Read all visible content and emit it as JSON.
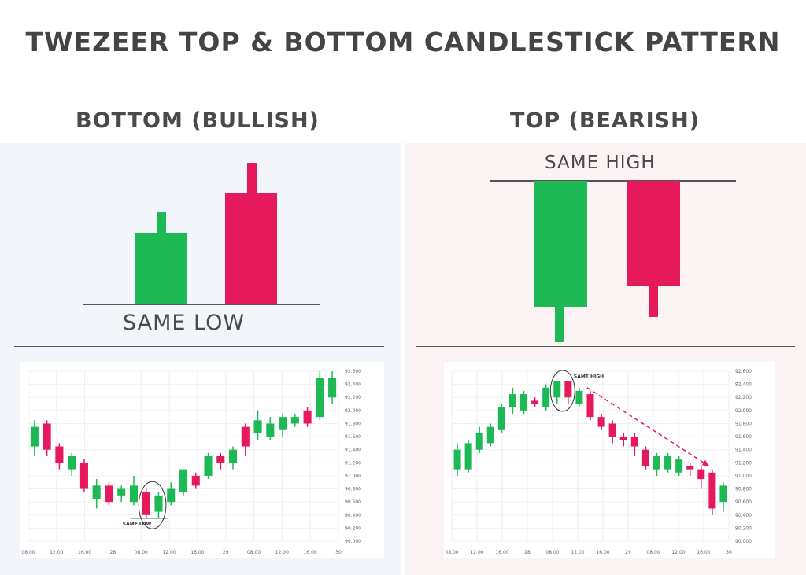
{
  "title": "TWEZEER TOP & BOTTOM CANDLESTICK PATTERN",
  "colors": {
    "bull": "#1db954",
    "bear": "#e5195b",
    "text": "#444444",
    "axis": "#555555"
  },
  "bottom": {
    "heading": "BOTTOM (BULLISH)",
    "label": "SAME LOW",
    "chart_label": "SAME LOW"
  },
  "top": {
    "heading": "TOP (BEARISH)",
    "label": "SAME HIGH",
    "chart_label": "SAME HIGH"
  },
  "chart_data": [
    {
      "type": "candlestick",
      "name_hint": "bottom-bullish-chart",
      "yticks": [
        "92.600",
        "92.400",
        "92.200",
        "92.000",
        "91.800",
        "91.600",
        "91.400",
        "91.200",
        "91.000",
        "90.800",
        "90.600",
        "90.400",
        "90.200",
        "90.000"
      ],
      "xticks": [
        "08.00",
        "12.00",
        "16.00",
        "28",
        "08.00",
        "12.00",
        "16.00",
        "29",
        "08.00",
        "12.00",
        "16.00",
        "30"
      ],
      "ylim": [
        90.0,
        92.6
      ],
      "candles": [
        {
          "o": 91.45,
          "c": 91.75,
          "h": 91.85,
          "l": 91.3
        },
        {
          "o": 91.8,
          "c": 91.4,
          "h": 91.85,
          "l": 91.3
        },
        {
          "o": 91.45,
          "c": 91.2,
          "h": 91.5,
          "l": 91.1
        },
        {
          "o": 91.1,
          "c": 91.3,
          "h": 91.35,
          "l": 91.0
        },
        {
          "o": 91.2,
          "c": 90.8,
          "h": 91.25,
          "l": 90.75
        },
        {
          "o": 90.65,
          "c": 90.85,
          "h": 90.95,
          "l": 90.5
        },
        {
          "o": 90.85,
          "c": 90.6,
          "h": 90.9,
          "l": 90.55
        },
        {
          "o": 90.7,
          "c": 90.8,
          "h": 90.85,
          "l": 90.6
        },
        {
          "o": 90.6,
          "c": 90.85,
          "h": 91.0,
          "l": 90.55
        },
        {
          "o": 90.75,
          "c": 90.4,
          "h": 90.8,
          "l": 90.35
        },
        {
          "o": 90.45,
          "c": 90.7,
          "h": 90.75,
          "l": 90.35
        },
        {
          "o": 90.6,
          "c": 90.8,
          "h": 90.9,
          "l": 90.55
        },
        {
          "o": 90.75,
          "c": 91.1,
          "h": 91.1,
          "l": 90.7
        },
        {
          "o": 91.0,
          "c": 90.85,
          "h": 91.05,
          "l": 90.8
        },
        {
          "o": 91.0,
          "c": 91.3,
          "h": 91.35,
          "l": 90.95
        },
        {
          "o": 91.3,
          "c": 91.2,
          "h": 91.35,
          "l": 91.1
        },
        {
          "o": 91.2,
          "c": 91.4,
          "h": 91.45,
          "l": 91.1
        },
        {
          "o": 91.75,
          "c": 91.45,
          "h": 91.8,
          "l": 91.3
        },
        {
          "o": 91.65,
          "c": 91.85,
          "h": 92.0,
          "l": 91.55
        },
        {
          "o": 91.6,
          "c": 91.8,
          "h": 91.9,
          "l": 91.55
        },
        {
          "o": 91.7,
          "c": 91.9,
          "h": 91.95,
          "l": 91.6
        },
        {
          "o": 91.8,
          "c": 91.9,
          "h": 91.95,
          "l": 91.75
        },
        {
          "o": 92.0,
          "c": 91.8,
          "h": 92.05,
          "l": 91.75
        },
        {
          "o": 91.9,
          "c": 92.5,
          "h": 92.6,
          "l": 91.85
        },
        {
          "o": 92.2,
          "c": 92.5,
          "h": 92.6,
          "l": 92.1
        }
      ]
    },
    {
      "type": "candlestick",
      "name_hint": "top-bearish-chart",
      "yticks": [
        "92.600",
        "92.400",
        "92.200",
        "92.000",
        "91.800",
        "91.600",
        "91.400",
        "91.200",
        "91.000",
        "90.800",
        "90.600",
        "90.400",
        "90.200",
        "90.000"
      ],
      "xticks": [
        "08.00",
        "12.00",
        "16.00",
        "28",
        "08.00",
        "12.00",
        "16.00",
        "29",
        "08.00",
        "12.00",
        "16.00",
        "30"
      ],
      "ylim": [
        90.0,
        92.6
      ],
      "candles": [
        {
          "o": 91.1,
          "c": 91.4,
          "h": 91.5,
          "l": 91.0
        },
        {
          "o": 91.1,
          "c": 91.5,
          "h": 91.55,
          "l": 91.05
        },
        {
          "o": 91.4,
          "c": 91.65,
          "h": 91.75,
          "l": 91.35
        },
        {
          "o": 91.5,
          "c": 91.75,
          "h": 91.8,
          "l": 91.45
        },
        {
          "o": 91.7,
          "c": 92.05,
          "h": 92.1,
          "l": 91.65
        },
        {
          "o": 92.05,
          "c": 92.25,
          "h": 92.35,
          "l": 91.95
        },
        {
          "o": 92.0,
          "c": 92.25,
          "h": 92.3,
          "l": 91.95
        },
        {
          "o": 92.15,
          "c": 92.1,
          "h": 92.2,
          "l": 92.05
        },
        {
          "o": 92.05,
          "c": 92.35,
          "h": 92.4,
          "l": 92.0
        },
        {
          "o": 92.2,
          "c": 92.45,
          "h": 92.45,
          "l": 92.1
        },
        {
          "o": 92.45,
          "c": 92.2,
          "h": 92.45,
          "l": 92.1
        },
        {
          "o": 92.1,
          "c": 92.3,
          "h": 92.35,
          "l": 92.05
        },
        {
          "o": 92.25,
          "c": 91.9,
          "h": 92.3,
          "l": 91.85
        },
        {
          "o": 91.9,
          "c": 91.75,
          "h": 91.95,
          "l": 91.7
        },
        {
          "o": 91.8,
          "c": 91.6,
          "h": 91.85,
          "l": 91.5
        },
        {
          "o": 91.6,
          "c": 91.55,
          "h": 91.65,
          "l": 91.45
        },
        {
          "o": 91.6,
          "c": 91.45,
          "h": 91.65,
          "l": 91.3
        },
        {
          "o": 91.4,
          "c": 91.15,
          "h": 91.45,
          "l": 91.1
        },
        {
          "o": 91.1,
          "c": 91.3,
          "h": 91.35,
          "l": 91.0
        },
        {
          "o": 91.1,
          "c": 91.3,
          "h": 91.35,
          "l": 91.05
        },
        {
          "o": 91.05,
          "c": 91.25,
          "h": 91.3,
          "l": 91.0
        },
        {
          "o": 91.15,
          "c": 91.1,
          "h": 91.2,
          "l": 91.0
        },
        {
          "o": 91.1,
          "c": 90.95,
          "h": 91.15,
          "l": 90.8
        },
        {
          "o": 91.05,
          "c": 90.5,
          "h": 91.1,
          "l": 90.4
        },
        {
          "o": 90.6,
          "c": 90.85,
          "h": 90.9,
          "l": 90.45
        }
      ]
    }
  ]
}
